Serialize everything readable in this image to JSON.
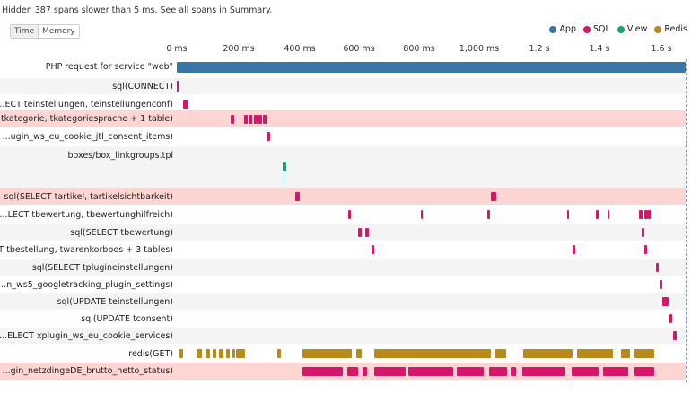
{
  "hint": "Hidden 387 spans slower than 5 ms. See all spans in Summary.",
  "toggle": {
    "time": "Time",
    "memory": "Memory"
  },
  "legend": [
    {
      "label": "App",
      "color": "#3a76a3"
    },
    {
      "label": "SQL",
      "color": "#d6166a"
    },
    {
      "label": "View",
      "color": "#1aa36a"
    },
    {
      "label": "Redis",
      "color": "#b88a1a"
    }
  ],
  "axis_ticks": [
    "0 ms",
    "200 ms",
    "400 ms",
    "600 ms",
    "800 ms",
    "1,000 ms",
    "1.2 s",
    "1.4 s",
    "1.6 s"
  ],
  "rows": [
    {
      "label": "PHP request for service \"web\"",
      "bg": ""
    },
    {
      "label": "sql(CONNECT)",
      "bg": "alt"
    },
    {
      "label": "...ECT teinstellungen, teinstellungenconf)",
      "bg": ""
    },
    {
      "label": "... tkategorie, tkategoriesprache + 1 table)",
      "bg": "hl"
    },
    {
      "label": "...ugin_ws_eu_cookie_jtl_consent_items)",
      "bg": ""
    },
    {
      "label": "boxes/box_linkgroups.tpl",
      "bg": "alt"
    },
    {
      "label": "sql(SELECT tartikel, tartikelsichtbarkeit)",
      "bg": "hl"
    },
    {
      "label": "...LECT tbewertung, tbewertunghilfreich)",
      "bg": ""
    },
    {
      "label": "sql(SELECT tbewertung)",
      "bg": "alt"
    },
    {
      "label": "...T tbestellung, twarenkorbpos + 3 tables)",
      "bg": ""
    },
    {
      "label": "sql(SELECT tplugineinstellungen)",
      "bg": "alt"
    },
    {
      "label": "...n_ws5_googletracking_plugin_settings)",
      "bg": ""
    },
    {
      "label": "sql(UPDATE teinstellungen)",
      "bg": "alt"
    },
    {
      "label": "sql(UPDATE tconsent)",
      "bg": ""
    },
    {
      "label": "...ELECT xplugin_ws_eu_cookie_services)",
      "bg": "alt"
    },
    {
      "label": "redis(GET)",
      "bg": ""
    },
    {
      "label": "...gin_netzdingeDE_brutto_netto_status)",
      "bg": "hl"
    }
  ]
}
